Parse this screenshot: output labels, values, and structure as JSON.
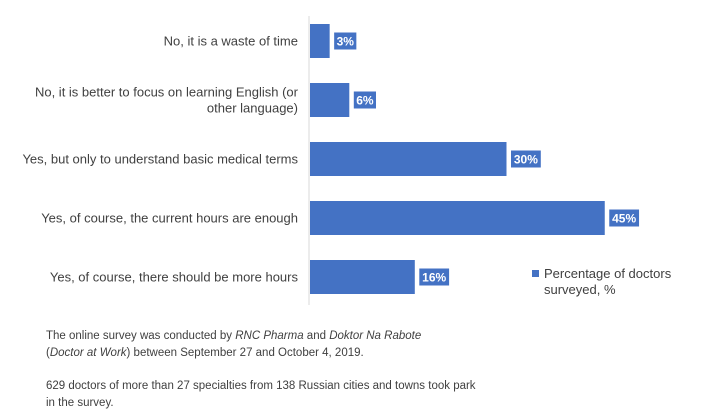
{
  "chart_data": {
    "type": "bar",
    "orientation": "horizontal",
    "categories": [
      "No, it is a waste of time",
      "No, it is better to focus on learning English (or other language)",
      "Yes, but only to understand basic medical terms",
      "Yes, of course, the current hours are enough",
      "Yes, of course, there should be more hours"
    ],
    "category_lines": [
      [
        "No, it is a waste of time"
      ],
      [
        "No, it is better to focus on learning English (or",
        "other language)"
      ],
      [
        "Yes, but only to understand basic medical terms"
      ],
      [
        "Yes, of course, the current hours are enough"
      ],
      [
        "Yes, of course, there should be more hours"
      ]
    ],
    "series": [
      {
        "name": "Percentage of doctors surveyed, %",
        "name_lines": [
          "Percentage of doctors",
          "surveyed, %"
        ],
        "values": [
          3,
          6,
          30,
          45,
          16
        ],
        "labels": [
          "3%",
          "6%",
          "30%",
          "45%",
          "16%"
        ],
        "color": "#4472c4"
      }
    ],
    "xlim": [
      0,
      50
    ],
    "grid": false,
    "legend_position": "right",
    "data_label_bg": "#4472c4"
  },
  "notes": {
    "line1_a": "The online survey was conducted by ",
    "line1_b": "RNC Pharma",
    "line1_c": " and ",
    "line1_d": "Doktor Na Rabote",
    "line2_a": "(",
    "line2_b": "Doctor at Work",
    "line2_c": ") between September 27 and October 4, 2019.",
    "line3": "629 doctors of more than 27 specialties from 138 Russian cities and towns took park in the survey."
  }
}
